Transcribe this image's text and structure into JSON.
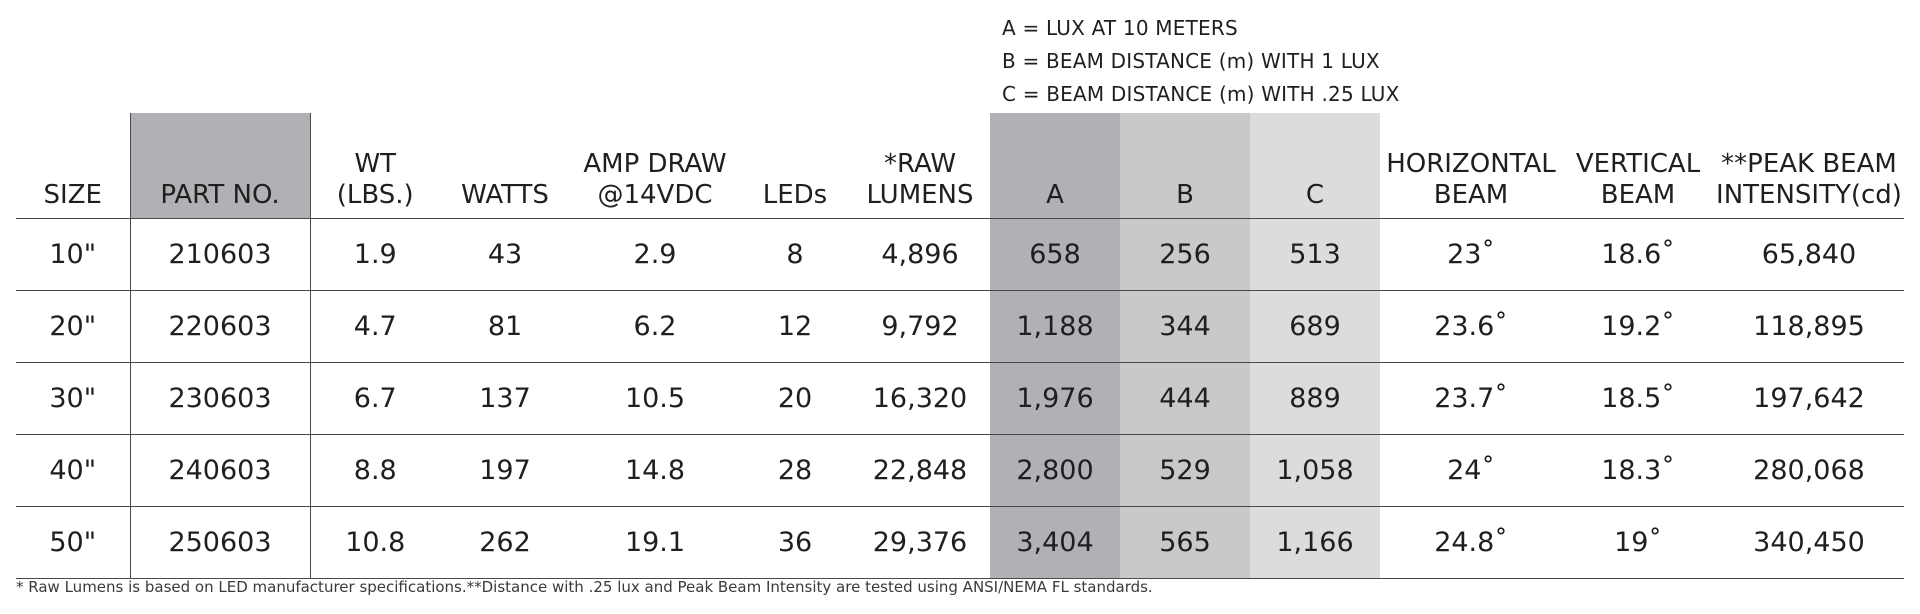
{
  "legend": [
    "A = LUX AT 10 METERS",
    "B = BEAM DISTANCE (m) WITH 1 LUX",
    "C = BEAM DISTANCE (m) WITH .25 LUX"
  ],
  "table": {
    "headers": {
      "size": "SIZE",
      "part_no": "PART NO.",
      "wt": "WT\n(LBS.)",
      "watts": "WATTS",
      "amp_draw": "AMP DRAW\n@14VDC",
      "leds": "LEDs",
      "raw_lumens": "*RAW\nLUMENS",
      "a": "A",
      "b": "B",
      "c": "C",
      "horizontal_beam": "HORIZONTAL\nBEAM",
      "vertical_beam": "VERTICAL\nBEAM",
      "peak_beam": "**PEAK BEAM\nINTENSITY(cd)"
    },
    "rows": [
      {
        "size": "10\"",
        "part_no": "210603",
        "wt": "1.9",
        "watts": "43",
        "amp_draw": "2.9",
        "leds": "8",
        "raw_lumens": "4,896",
        "a": "658",
        "b": "256",
        "c": "513",
        "horizontal_beam": "23˚",
        "vertical_beam": "18.6˚",
        "peak_beam": "65,840"
      },
      {
        "size": "20\"",
        "part_no": "220603",
        "wt": "4.7",
        "watts": "81",
        "amp_draw": "6.2",
        "leds": "12",
        "raw_lumens": "9,792",
        "a": "1,188",
        "b": "344",
        "c": "689",
        "horizontal_beam": "23.6˚",
        "vertical_beam": "19.2˚",
        "peak_beam": "118,895"
      },
      {
        "size": "30\"",
        "part_no": "230603",
        "wt": "6.7",
        "watts": "137",
        "amp_draw": "10.5",
        "leds": "20",
        "raw_lumens": "16,320",
        "a": "1,976",
        "b": "444",
        "c": "889",
        "horizontal_beam": "23.7˚",
        "vertical_beam": "18.5˚",
        "peak_beam": "197,642"
      },
      {
        "size": "40\"",
        "part_no": "240603",
        "wt": "8.8",
        "watts": "197",
        "amp_draw": "14.8",
        "leds": "28",
        "raw_lumens": "22,848",
        "a": "2,800",
        "b": "529",
        "c": "1,058",
        "horizontal_beam": "24˚",
        "vertical_beam": "18.3˚",
        "peak_beam": "280,068"
      },
      {
        "size": "50\"",
        "part_no": "250603",
        "wt": "10.8",
        "watts": "262",
        "amp_draw": "19.1",
        "leds": "36",
        "raw_lumens": "29,376",
        "a": "3,404",
        "b": "565",
        "c": "1,166",
        "horizontal_beam": "24.8˚",
        "vertical_beam": "19˚",
        "peak_beam": "340,450"
      }
    ]
  },
  "footnote": "* Raw Lumens is based on LED manufacturer specifications.**Distance with .25 lux and Peak Beam Intensity are tested using ANSI/NEMA FL standards.",
  "colors": {
    "column_a": "#b0b1b4",
    "column_b": "#c9c9cc",
    "column_c": "#dcdcde",
    "part_no_header": "#b0b1b4"
  }
}
